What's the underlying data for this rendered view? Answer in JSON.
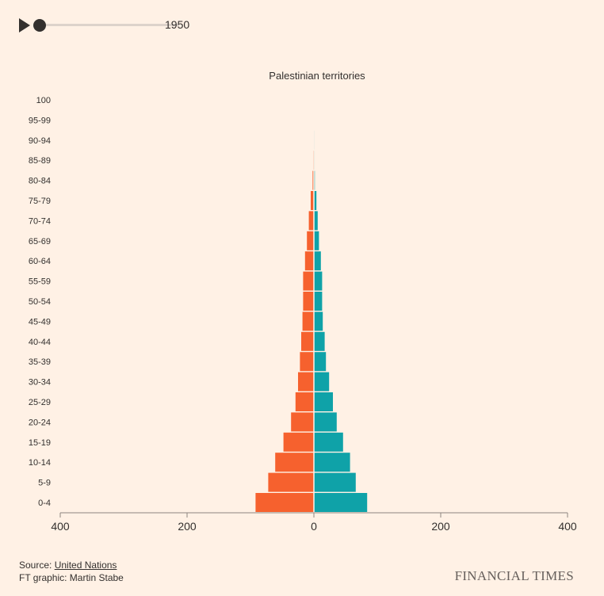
{
  "controls": {
    "year": "1950",
    "progress": 0
  },
  "chart_data": {
    "type": "bar",
    "title": "Palestinian territories",
    "categories": [
      "0-4",
      "5-9",
      "10-14",
      "15-19",
      "20-24",
      "25-29",
      "30-34",
      "35-39",
      "40-44",
      "45-49",
      "50-54",
      "55-59",
      "60-64",
      "65-69",
      "70-74",
      "75-79",
      "80-84",
      "85-89",
      "90-94",
      "95-99",
      "100"
    ],
    "series": [
      {
        "values": [
          -92,
          -72,
          -61,
          -48,
          -36,
          -29,
          -25,
          -22,
          -20,
          -18,
          -17,
          -17,
          -14,
          -11,
          -8,
          -5,
          -2,
          -1,
          -0.5,
          0,
          0
        ]
      },
      {
        "values": [
          84,
          66,
          57,
          46,
          36,
          30,
          24,
          19,
          17,
          14,
          13,
          13,
          11,
          8,
          6,
          4,
          1.5,
          0.8,
          0.3,
          0,
          0
        ]
      }
    ],
    "colors": [
      "#f6612e",
      "#0fa2a8"
    ],
    "xlim": [
      -400,
      400
    ],
    "xticks": [
      -400,
      -200,
      0,
      200,
      400
    ],
    "xtick_labels": [
      "400",
      "200",
      "0",
      "200",
      "400"
    ]
  },
  "footer": {
    "source_prefix": "Source: ",
    "source_link": "United Nations",
    "credit": "FT graphic: Martin Stabe",
    "logo": "FINANCIAL TIMES"
  }
}
